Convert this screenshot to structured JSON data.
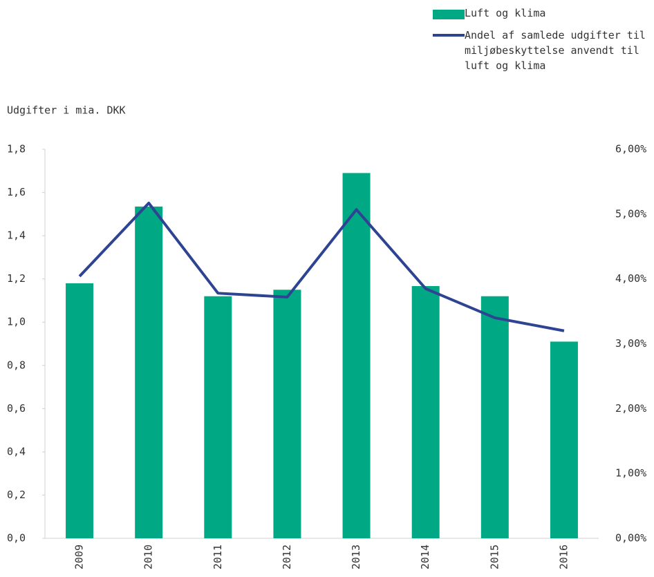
{
  "chart_data": {
    "type": "bar-line",
    "y_axis_label": "Udgifter i mia. DKK",
    "categories": [
      "2009",
      "2010",
      "2011",
      "2012",
      "2013",
      "2014",
      "2015",
      "2016"
    ],
    "series": [
      {
        "name": "Luft og klima",
        "type": "bar",
        "color": "#00a884",
        "values": [
          1.18,
          1.535,
          1.12,
          1.15,
          1.69,
          1.167,
          1.12,
          0.91
        ]
      },
      {
        "name": "Andel af samlede udgifter til miljøbeskyttelse anvendt til luft og klima",
        "type": "line",
        "axis": "y2",
        "color": "#2e4493",
        "values": [
          4.04,
          5.17,
          3.78,
          3.72,
          5.07,
          3.85,
          3.4,
          3.2
        ]
      }
    ],
    "ylim": [
      0,
      1.8
    ],
    "yticks": [
      {
        "value": 0,
        "label": "0,0"
      },
      {
        "value": 0.2,
        "label": "0,2"
      },
      {
        "value": 0.4,
        "label": "0,4"
      },
      {
        "value": 0.6,
        "label": "0,6"
      },
      {
        "value": 0.8,
        "label": "0,8"
      },
      {
        "value": 1.0,
        "label": "1,0"
      },
      {
        "value": 1.2,
        "label": "1,2"
      },
      {
        "value": 1.4,
        "label": "1,4"
      },
      {
        "value": 1.6,
        "label": "1,6"
      },
      {
        "value": 1.8,
        "label": "1,8"
      }
    ],
    "y2lim": [
      0,
      6
    ],
    "y2ticks": [
      {
        "value": 0,
        "label": "0,00%"
      },
      {
        "value": 1,
        "label": "1,00%"
      },
      {
        "value": 2,
        "label": "2,00%"
      },
      {
        "value": 3,
        "label": "3,00%"
      },
      {
        "value": 4,
        "label": "4,00%"
      },
      {
        "value": 5,
        "label": "5,00%"
      },
      {
        "value": 6,
        "label": "6,00%"
      }
    ],
    "legend": "top-right",
    "grid": false
  }
}
